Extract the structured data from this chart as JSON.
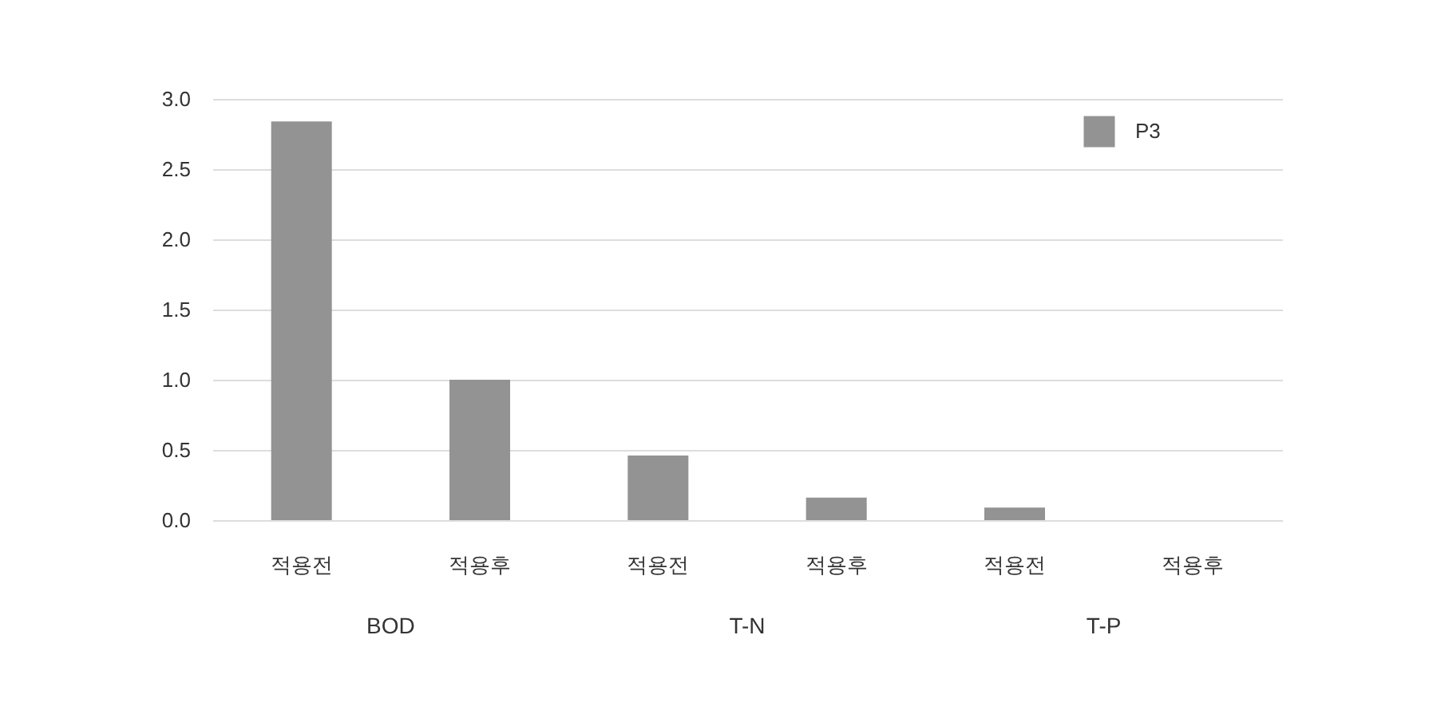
{
  "chart_data": {
    "type": "bar",
    "categories": [
      "적용전",
      "적용후",
      "적용전",
      "적용후",
      "적용전",
      "적용후"
    ],
    "series": [
      {
        "name": "P3",
        "color": "#939393",
        "values": [
          2.84,
          1.0,
          0.46,
          0.16,
          0.09,
          0
        ]
      }
    ],
    "annotations": [
      "BOD",
      "T-N",
      "T-P"
    ],
    "ylim": [
      0,
      3.0
    ],
    "yticks": [
      {
        "value": 0,
        "label": "0.0"
      },
      {
        "value": 0.5,
        "label": "0.5"
      },
      {
        "value": 1,
        "label": "1.0"
      },
      {
        "value": 1.5,
        "label": "1.5"
      },
      {
        "value": 2,
        "label": "2.0"
      },
      {
        "value": 2.5,
        "label": "2.5"
      },
      {
        "value": 3,
        "label": "3.0"
      }
    ],
    "grid": "y",
    "legend": "top right"
  }
}
